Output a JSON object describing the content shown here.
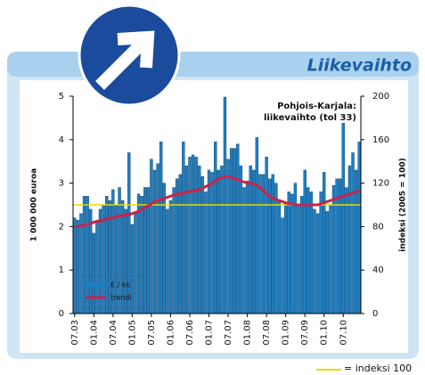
{
  "chart_data": {
    "type": "bar",
    "title": "Liikevaihto",
    "annotation": [
      "Pohjois-Karjala:",
      "liikevaihto (tol 33)"
    ],
    "ylabel": "1 000 000 euroa",
    "y2label": "indeksi (2005 = 100)",
    "categories": [
      "07.03",
      null,
      null,
      null,
      null,
      null,
      "01.04",
      null,
      null,
      null,
      null,
      null,
      "07.04",
      null,
      null,
      null,
      null,
      null,
      "01.05",
      null,
      null,
      null,
      null,
      null,
      "07.05",
      null,
      null,
      null,
      null,
      null,
      "01.06",
      null,
      null,
      null,
      null,
      null,
      "07.06",
      null,
      null,
      null,
      null,
      null,
      "01.07",
      null,
      null,
      null,
      null,
      null,
      "07.07",
      null,
      null,
      null,
      null,
      null,
      "01.08",
      null,
      null,
      null,
      null,
      null,
      "07.08",
      null,
      null,
      null,
      null,
      null,
      "01.09",
      null,
      null,
      null,
      null,
      null,
      "07.09",
      null,
      null,
      null,
      null,
      null,
      "01.10",
      null,
      null,
      null,
      null,
      null,
      "07.10",
      null,
      null,
      null,
      null,
      null
    ],
    "series": [
      {
        "name": "€ / kk",
        "color": "#1e7fc0",
        "values": [
          2.2,
          2.15,
          2.3,
          2.7,
          2.7,
          2.4,
          1.85,
          2.1,
          2.4,
          2.5,
          2.7,
          2.6,
          2.85,
          2.5,
          2.9,
          2.6,
          2.4,
          3.7,
          2.05,
          2.3,
          2.75,
          2.7,
          2.9,
          2.9,
          3.55,
          3.3,
          3.45,
          3.95,
          3.0,
          2.4,
          2.6,
          2.9,
          3.1,
          3.2,
          3.95,
          3.4,
          3.6,
          3.65,
          3.6,
          3.4,
          3.15,
          2.8,
          3.3,
          3.25,
          3.95,
          3.3,
          3.4,
          4.98,
          3.55,
          3.8,
          3.8,
          3.9,
          3.4,
          2.9,
          3.05,
          3.4,
          3.3,
          4.05,
          3.2,
          3.2,
          3.6,
          3.1,
          3.2,
          3.0,
          2.6,
          2.2,
          2.55,
          2.8,
          2.75,
          3.0,
          2.5,
          2.7,
          3.3,
          2.9,
          2.8,
          2.4,
          2.3,
          2.8,
          3.25,
          2.35,
          2.5,
          2.95,
          3.1,
          3.1,
          4.38,
          2.9,
          3.4,
          3.7,
          3.3,
          3.95
        ]
      },
      {
        "name": "trendi",
        "color": "#c8234a",
        "axis": "y2",
        "values": [
          80,
          80,
          81,
          81,
          82,
          83,
          84,
          85,
          85,
          86,
          87,
          88,
          88,
          89,
          90,
          90,
          91,
          91,
          92,
          93,
          94,
          96,
          98,
          99,
          101,
          103,
          104,
          105,
          106,
          107,
          108,
          109,
          110,
          110,
          111,
          112,
          112,
          113,
          113,
          114,
          115,
          117,
          118,
          120,
          122,
          124,
          125,
          126,
          126,
          125,
          124,
          123,
          122,
          121,
          120,
          120,
          119,
          118,
          116,
          113,
          110,
          108,
          106,
          105,
          104,
          103,
          102,
          101,
          101,
          100,
          100,
          100,
          100,
          100,
          100,
          100,
          100,
          101,
          102,
          103,
          104,
          105,
          106,
          107,
          108,
          109,
          110,
          111,
          112,
          113
        ]
      }
    ],
    "reference_line": {
      "value": 100,
      "axis": "y2",
      "color": "#e3dc00",
      "label": "= indeksi 100"
    },
    "ylim": [
      0,
      5
    ],
    "yticks": [
      0,
      1,
      2,
      3,
      4,
      5
    ],
    "y2lim": [
      0,
      200
    ],
    "y2ticks": [
      0,
      40,
      80,
      120,
      160,
      200
    ]
  }
}
